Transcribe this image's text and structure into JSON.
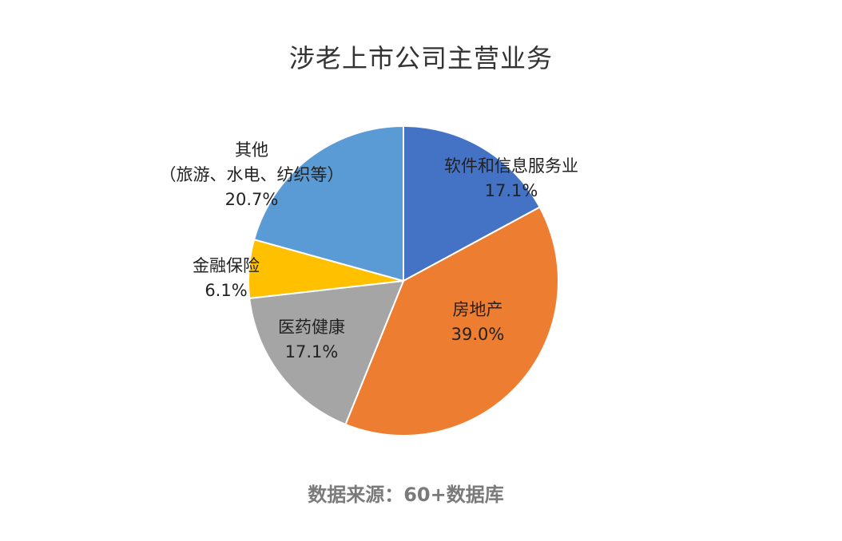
{
  "chart_data": {
    "type": "pie",
    "title": "涉老上市公司主营业务",
    "slices": [
      {
        "name": "软件和信息服务业",
        "value": 17.1,
        "label": "17.1%",
        "color": "#4472C4"
      },
      {
        "name": "房地产",
        "value": 39.0,
        "label": "39.0%",
        "color": "#ED7D31"
      },
      {
        "name": "医药健康",
        "value": 17.1,
        "label": "17.1%",
        "color": "#A5A5A5"
      },
      {
        "name": "金融保险",
        "value": 6.1,
        "label": "6.1%",
        "color": "#FFC000"
      },
      {
        "name": "其他",
        "name_line2": "（旅游、水电、纺织等）",
        "value": 20.7,
        "label": "20.7%",
        "color": "#5B9BD5"
      }
    ]
  },
  "source": "数据来源：60+数据库"
}
